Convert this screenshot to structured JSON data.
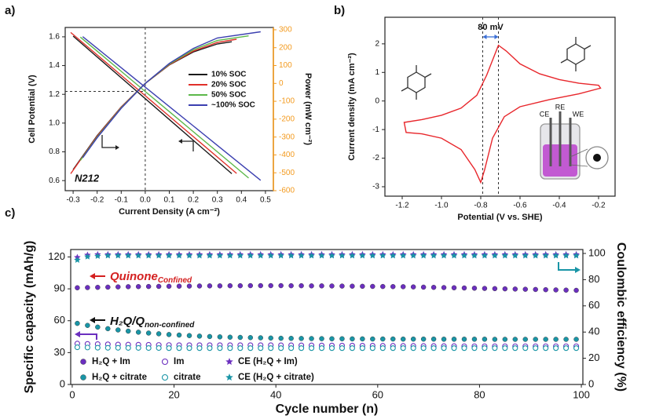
{
  "chart_data": [
    {
      "type": "line",
      "label": "a)",
      "xlabel": "Current Density (A cm⁻²)",
      "ylabel": "Cell Potential (V)",
      "y2label": "Power (mW cm⁻²)",
      "xlim": [
        -0.333,
        0.533
      ],
      "xticks": [
        -0.3,
        -0.2,
        -0.1,
        {
          "value": 0,
          "label": "0.0"
        },
        0.1,
        0.2,
        0.3,
        0.4,
        0.5
      ],
      "ylim": [
        0.53,
        1.665
      ],
      "yticks": [
        0.6,
        0.8,
        {
          "value": 1,
          "label": "1.0"
        },
        1.2,
        1.4,
        1.6
      ],
      "y2lim": [
        -600,
        313
      ],
      "y2ticks": [
        -600,
        -500,
        -400,
        -300,
        -200,
        -100,
        0,
        100,
        200,
        300
      ],
      "y2_color": "#f39a1e",
      "legend": "center-right",
      "annotation": "N212",
      "guides": {
        "x": 0,
        "y": 1.22
      },
      "series": [
        {
          "name": "10% SOC",
          "color": "#1a1a1a",
          "x": [
            -0.3,
            -0.2,
            -0.1,
            0,
            0.1,
            0.2,
            0.3,
            0.36
          ],
          "values": [
            1.605,
            1.46,
            1.315,
            1.17,
            1.025,
            0.88,
            0.735,
            0.648
          ],
          "y2_values": [
            -482,
            -292,
            -132,
            0,
            103,
            176,
            221,
            233
          ]
        },
        {
          "name": "20% SOC",
          "color": "#e0302a",
          "x": [
            -0.31,
            -0.2,
            -0.1,
            0,
            0.1,
            0.2,
            0.3,
            0.38
          ],
          "values": [
            1.63,
            1.474,
            1.332,
            1.19,
            1.048,
            0.906,
            0.764,
            0.65
          ],
          "y2_values": [
            -505,
            -295,
            -133,
            0,
            105,
            181,
            229,
            247
          ]
        },
        {
          "name": "50% SOC",
          "color": "#5cb84a",
          "x": [
            -0.27,
            -0.2,
            -0.1,
            0,
            0.1,
            0.2,
            0.3,
            0.43
          ],
          "values": [
            1.598,
            1.5,
            1.36,
            1.22,
            1.08,
            0.94,
            0.8,
            0.618
          ],
          "y2_values": [
            -431,
            -300,
            -136,
            0,
            108,
            188,
            240,
            266
          ]
        },
        {
          "name": "~100% SOC",
          "color": "#3b3fb0",
          "x": [
            -0.26,
            -0.2,
            -0.1,
            0,
            0.1,
            0.2,
            0.3,
            0.48
          ],
          "values": [
            1.601,
            1.52,
            1.385,
            1.25,
            1.115,
            0.98,
            0.845,
            0.602
          ],
          "y2_values": [
            -416,
            -304,
            -139,
            0,
            112,
            196,
            254,
            289
          ]
        }
      ]
    },
    {
      "type": "line",
      "label": "b)",
      "xlabel": "Potential (V vs. SHE)",
      "ylabel": "Current density (mA cm⁻²)",
      "xlim": [
        -1.288,
        -0.116
      ],
      "xticks": [
        -1.2,
        {
          "value": -1,
          "label": "-1.0"
        },
        -0.8,
        -0.6,
        -0.4,
        -0.2
      ],
      "ylim": [
        -3.33,
        2.93
      ],
      "yticks": [
        -3,
        -2,
        -1,
        0,
        1,
        2
      ],
      "annotation": "80 mV",
      "guides": {
        "x": [
          -0.79,
          -0.71
        ]
      },
      "cell_labels": [
        "CE",
        "RE",
        "WE"
      ],
      "closed": true,
      "series": [
        {
          "color": "#e8262b",
          "x": [
            -0.19,
            -0.3,
            -0.45,
            -0.6,
            -0.68,
            -0.74,
            -0.78,
            -0.8,
            -0.83,
            -0.9,
            -1.0,
            -1.1,
            -1.18,
            -1.19,
            -1.1,
            -1.0,
            -0.9,
            -0.82,
            -0.77,
            -0.73,
            -0.71,
            -0.67,
            -0.6,
            -0.5,
            -0.4,
            -0.3,
            -0.2
          ],
          "values": [
            0.45,
            0.25,
            0.05,
            -0.2,
            -0.55,
            -1.3,
            -2.4,
            -2.85,
            -2.4,
            -1.7,
            -1.3,
            -1.15,
            -1.1,
            -0.75,
            -0.65,
            -0.5,
            -0.25,
            0.2,
            0.9,
            1.6,
            1.95,
            1.75,
            1.3,
            0.95,
            0.75,
            0.62,
            0.55
          ]
        }
      ]
    },
    {
      "type": "scatter",
      "label": "c)",
      "xlabel": "Cycle number (n)",
      "ylabel": "Specific capacity (mAh/g)",
      "y2label": "Coulombic efficiency (%)",
      "xlim": [
        -0.3,
        100.3
      ],
      "xticks": [
        0,
        20,
        40,
        60,
        80,
        100
      ],
      "ylim": [
        0,
        127
      ],
      "yticks": [
        0,
        30,
        60,
        90,
        120
      ],
      "y2lim": [
        0,
        103
      ],
      "y2ticks": [
        0,
        20,
        40,
        60,
        80,
        100
      ],
      "legend": "lower-left",
      "annotations": [
        {
          "text": "Quinone",
          "sub": "Confined",
          "color": "#d42020"
        },
        {
          "text": "H₂Q/Q",
          "sub": "non-confined",
          "color": "#111111"
        }
      ],
      "x": [
        1,
        3,
        5,
        7,
        9,
        11,
        13,
        15,
        17,
        19,
        21,
        23,
        25,
        27,
        29,
        31,
        33,
        35,
        37,
        39,
        41,
        43,
        45,
        47,
        49,
        51,
        53,
        55,
        57,
        59,
        61,
        63,
        65,
        67,
        69,
        71,
        73,
        75,
        77,
        79,
        81,
        83,
        85,
        87,
        89,
        91,
        93,
        95,
        97,
        99
      ],
      "series": [
        {
          "name": "H₂Q + Im",
          "color": "#6b2fbf",
          "marker": "circle",
          "values": [
            91.0,
            91.2,
            91.4,
            91.6,
            91.8,
            92.0,
            92.1,
            92.2,
            92.3,
            92.4,
            92.5,
            92.6,
            92.7,
            92.8,
            92.8,
            92.9,
            92.9,
            93.0,
            93.0,
            93.0,
            93.0,
            92.9,
            92.9,
            92.8,
            92.8,
            92.7,
            92.6,
            92.5,
            92.4,
            92.3,
            92.2,
            92.1,
            92.0,
            91.8,
            91.6,
            91.4,
            91.2,
            91.0,
            90.8,
            90.6,
            90.4,
            90.2,
            90.0,
            89.8,
            89.6,
            89.4,
            89.2,
            89.0,
            88.8,
            88.6
          ]
        },
        {
          "name": "Im",
          "color": "#6b2fbf",
          "marker": "open",
          "values": [
            38.5,
            38.2,
            38.0,
            37.8,
            37.6,
            37.5,
            37.4,
            37.3,
            37.2,
            37.1,
            37.0,
            37.0,
            37.0,
            37.0,
            37.0,
            37.0,
            37.0,
            37.0,
            37.0,
            37.0,
            36.9,
            36.9,
            36.8,
            36.8,
            36.7,
            36.7,
            36.6,
            36.6,
            36.5,
            36.5,
            36.4,
            36.4,
            36.3,
            36.3,
            36.2,
            36.2,
            36.1,
            36.1,
            36.0,
            36.0,
            36.0,
            36.0,
            36.0,
            36.0,
            36.0,
            36.0,
            36.0,
            36.0,
            36.0,
            36.0
          ]
        },
        {
          "name": "CE (H₂Q + Im)",
          "color": "#6b2fbf",
          "marker": "star",
          "axis": "y2",
          "values": [
            97.0,
            98.8,
            99.2,
            99.2,
            99.2,
            99.2,
            99.2,
            99.2,
            99.2,
            99.2,
            99.2,
            99.2,
            99.2,
            99.2,
            99.2,
            99.2,
            99.2,
            99.2,
            99.2,
            99.2,
            99.2,
            99.2,
            99.2,
            99.2,
            99.2,
            99.2,
            99.2,
            99.2,
            99.2,
            99.2,
            99.2,
            99.2,
            99.2,
            99.2,
            99.2,
            99.2,
            99.2,
            99.2,
            99.2,
            99.2,
            99.2,
            99.2,
            99.2,
            99.2,
            99.2,
            99.2,
            99.2,
            99.2,
            99.2,
            99.2
          ]
        },
        {
          "name": "H₂Q + citrate",
          "color": "#1995a6",
          "marker": "circle",
          "values": [
            57.5,
            55.6,
            54.0,
            52.5,
            51.3,
            50.2,
            49.2,
            48.4,
            47.7,
            47.0,
            46.5,
            46.0,
            45.5,
            45.1,
            44.8,
            44.5,
            44.3,
            44.1,
            43.9,
            43.7,
            43.5,
            43.4,
            43.3,
            43.2,
            43.1,
            43.0,
            43.0,
            42.9,
            42.9,
            42.8,
            42.8,
            42.8,
            42.7,
            42.7,
            42.7,
            42.7,
            42.6,
            42.6,
            42.6,
            42.6,
            42.6,
            42.5,
            42.5,
            42.5,
            42.5,
            42.5,
            42.5,
            42.5,
            42.5,
            42.5
          ]
        },
        {
          "name": "citrate",
          "color": "#1995a6",
          "marker": "open",
          "values": [
            35.0,
            34.8,
            34.6,
            34.5,
            34.5,
            34.4,
            34.4,
            34.3,
            34.3,
            34.2,
            34.2,
            34.2,
            34.2,
            34.2,
            34.2,
            34.2,
            34.2,
            34.2,
            34.2,
            34.2,
            34.2,
            34.2,
            34.2,
            34.2,
            34.2,
            34.2,
            34.2,
            34.2,
            34.2,
            34.2,
            34.2,
            34.2,
            34.2,
            34.2,
            34.2,
            34.2,
            34.2,
            34.2,
            34.2,
            34.2,
            34.2,
            34.2,
            34.2,
            34.2,
            34.2,
            34.2,
            34.2,
            34.2,
            34.2,
            34.2
          ]
        },
        {
          "name": "CE (H₂Q + citrate)",
          "color": "#1995a6",
          "marker": "star",
          "axis": "y2",
          "values": [
            95.0,
            97.5,
            98.0,
            98.3,
            98.3,
            98.3,
            98.3,
            98.3,
            98.3,
            98.3,
            98.3,
            98.3,
            98.3,
            98.3,
            98.3,
            98.3,
            98.3,
            98.3,
            98.3,
            98.3,
            98.3,
            98.3,
            98.3,
            98.3,
            98.3,
            98.3,
            98.3,
            98.3,
            98.3,
            98.3,
            98.3,
            98.3,
            98.3,
            98.3,
            98.3,
            98.3,
            98.3,
            98.3,
            98.3,
            98.3,
            98.3,
            98.3,
            98.3,
            98.3,
            98.3,
            98.3,
            98.3,
            98.3,
            98.3,
            98.3
          ]
        }
      ]
    }
  ]
}
